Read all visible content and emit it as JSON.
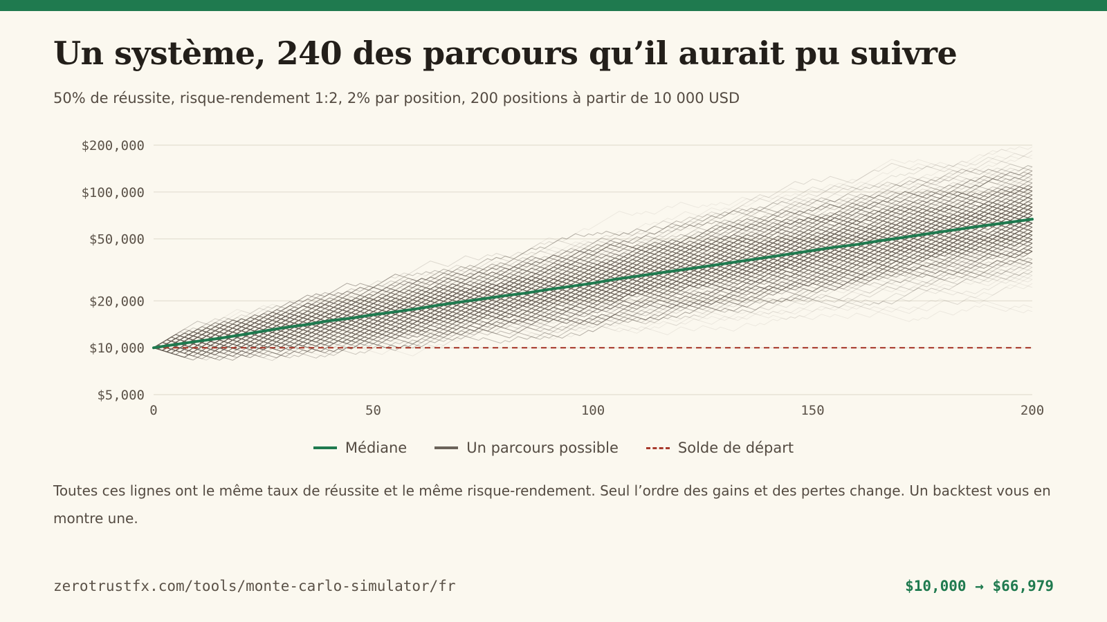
{
  "header": {
    "title": "Un système, 240 des parcours qu’il aurait pu suivre",
    "subtitle": "50% de réussite, risque-rendement 1:2, 2% par position, 200 positions à partir de 10 000 USD"
  },
  "chart_data": {
    "type": "line",
    "title": "",
    "xlabel": "",
    "ylabel": "",
    "y_scale": "log",
    "x_range": [
      0,
      200
    ],
    "y_range": [
      5000,
      200000
    ],
    "x_ticks": [
      0,
      50,
      100,
      150,
      200
    ],
    "x_tick_labels": [
      "0",
      "50",
      "100",
      "150",
      "200"
    ],
    "y_ticks": [
      5000,
      10000,
      20000,
      50000,
      100000,
      200000
    ],
    "y_tick_labels": [
      "$5,000",
      "$10,000",
      "$20,000",
      "$50,000",
      "$100,000",
      "$200,000"
    ],
    "grid": true,
    "legend_position": "bottom",
    "start_balance": 10000,
    "n_paths": 240,
    "n_trades": 200,
    "win_rate": 0.5,
    "risk_per_trade": 0.02,
    "reward_risk": 2,
    "series": [
      {
        "name": "Médiane",
        "color": "#1f7a4f",
        "x": [
          0,
          5,
          10,
          15,
          20,
          25,
          30,
          35,
          40,
          45,
          50,
          55,
          60,
          65,
          70,
          75,
          80,
          85,
          90,
          95,
          100,
          105,
          110,
          115,
          120,
          125,
          130,
          135,
          140,
          145,
          150,
          155,
          160,
          165,
          170,
          175,
          180,
          185,
          190,
          195,
          200
        ],
        "values": [
          10000,
          10500,
          11000,
          11500,
          12100,
          12800,
          13500,
          14100,
          14900,
          15500,
          16300,
          17000,
          17800,
          18800,
          19700,
          20600,
          21600,
          22500,
          23700,
          24800,
          26000,
          27500,
          28800,
          30200,
          31600,
          33100,
          34700,
          36400,
          38200,
          40100,
          42100,
          44200,
          46000,
          48500,
          50800,
          53300,
          55900,
          58600,
          61400,
          64000,
          66979
        ]
      },
      {
        "name": "Un parcours possible",
        "color": "#6b635a"
      },
      {
        "name": "Solde de départ",
        "color": "#a83a2c",
        "values": [
          10000
        ]
      }
    ]
  },
  "note": "Toutes ces lignes ont le même taux de réussite et le même risque-rendement. Seul l’ordre des gains et des pertes change. Un backtest vous en montre une.",
  "footer": {
    "source": "zerotrustfx.com/tools/monte-carlo-simulator/fr",
    "result": "$10,000 → $66,979"
  }
}
